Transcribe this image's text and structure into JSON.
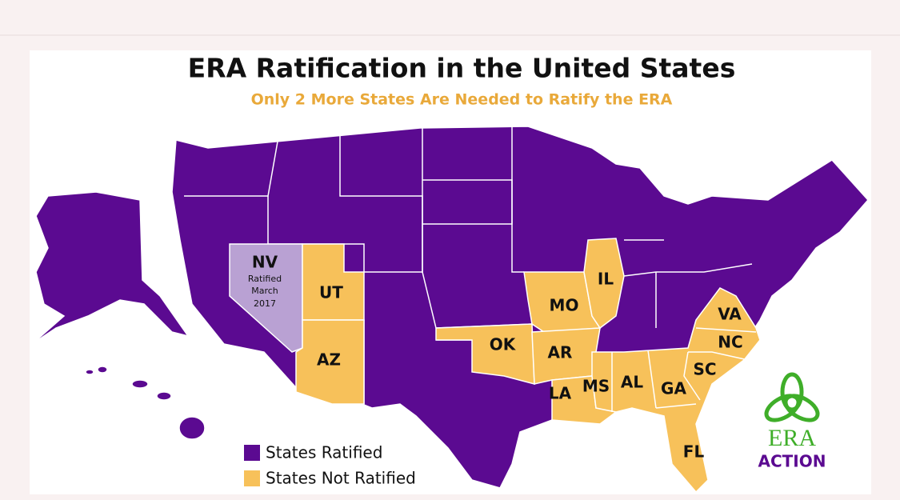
{
  "header": {
    "title": "ERA Ratification in the United States",
    "subtitle": "Only 2 More States Are Needed to Ratify the ERA"
  },
  "states": [
    "NV",
    "UT",
    "AZ",
    "OK",
    "MO",
    "IL",
    "AR",
    "LA",
    "MS",
    "AL",
    "GA",
    "SC",
    "NC",
    "VA",
    "FL"
  ],
  "nv_note": [
    "Ratified",
    "March",
    "2017"
  ],
  "legend": [
    "States Ratified",
    "States Not Ratified"
  ],
  "logo": {
    "name": "ERA",
    "sub": "ACTION"
  }
}
